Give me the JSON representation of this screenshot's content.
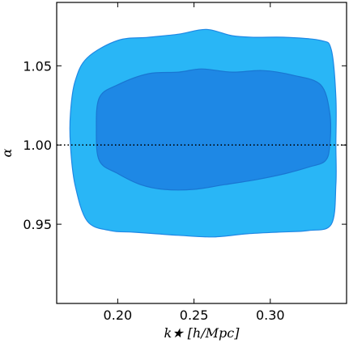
{
  "chart_data": {
    "type": "area",
    "xlabel": "k★ [h/Mpc]",
    "ylabel": "α",
    "xlim": [
      0.16,
      0.35
    ],
    "ylim": [
      0.9,
      1.09
    ],
    "xticks": [
      0.2,
      0.25,
      0.3
    ],
    "yticks": [
      0.95,
      1.0,
      1.05
    ],
    "xtick_labels": [
      "0.20",
      "0.25",
      "0.30"
    ],
    "ytick_labels": [
      "0.95",
      "1.00",
      "1.05"
    ],
    "grid": false,
    "reference_line": {
      "y": 1.0,
      "style": "dotted",
      "color": "#000000"
    },
    "series": [
      {
        "level": "outer",
        "color": "#29b6f6",
        "edge": "#1e88e5",
        "contour": [
          [
            0.172,
            1.04
          ],
          [
            0.18,
            1.055
          ],
          [
            0.2,
            1.066
          ],
          [
            0.22,
            1.068
          ],
          [
            0.24,
            1.07
          ],
          [
            0.258,
            1.073
          ],
          [
            0.275,
            1.069
          ],
          [
            0.29,
            1.068
          ],
          [
            0.31,
            1.068
          ],
          [
            0.333,
            1.066
          ],
          [
            0.34,
            1.06
          ],
          [
            0.343,
            1.03
          ],
          [
            0.343,
            1.0
          ],
          [
            0.343,
            0.975
          ],
          [
            0.34,
            0.95
          ],
          [
            0.325,
            0.946
          ],
          [
            0.305,
            0.945
          ],
          [
            0.285,
            0.944
          ],
          [
            0.263,
            0.942
          ],
          [
            0.24,
            0.943
          ],
          [
            0.225,
            0.944
          ],
          [
            0.21,
            0.945
          ],
          [
            0.195,
            0.946
          ],
          [
            0.18,
            0.952
          ],
          [
            0.172,
            0.975
          ],
          [
            0.169,
            1.0
          ],
          [
            0.169,
            1.02
          ]
        ]
      },
      {
        "level": "inner",
        "color": "#1e88e5",
        "edge": "#1976d2",
        "contour": [
          [
            0.188,
            1.03
          ],
          [
            0.2,
            1.038
          ],
          [
            0.22,
            1.045
          ],
          [
            0.24,
            1.046
          ],
          [
            0.255,
            1.048
          ],
          [
            0.275,
            1.046
          ],
          [
            0.295,
            1.047
          ],
          [
            0.315,
            1.044
          ],
          [
            0.333,
            1.038
          ],
          [
            0.339,
            1.02
          ],
          [
            0.339,
            1.0
          ],
          [
            0.336,
            0.99
          ],
          [
            0.325,
            0.986
          ],
          [
            0.31,
            0.982
          ],
          [
            0.29,
            0.978
          ],
          [
            0.27,
            0.975
          ],
          [
            0.25,
            0.972
          ],
          [
            0.23,
            0.972
          ],
          [
            0.215,
            0.975
          ],
          [
            0.2,
            0.982
          ],
          [
            0.188,
            0.99
          ],
          [
            0.186,
            1.01
          ]
        ]
      }
    ]
  }
}
